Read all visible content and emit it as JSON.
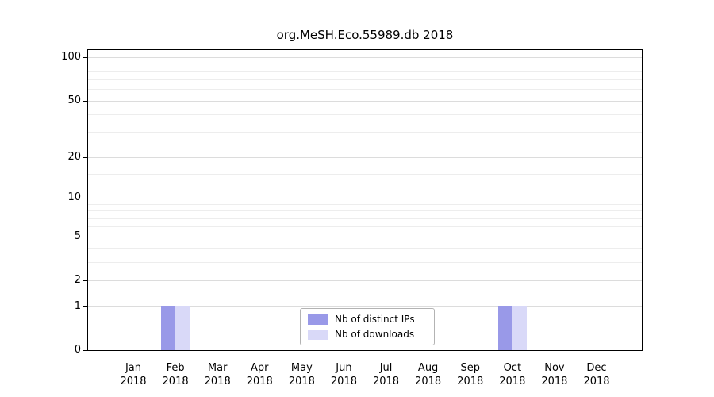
{
  "chart_data": {
    "type": "bar",
    "title": "org.MeSH.Eco.55989.db 2018",
    "categories": [
      "Jan 2018",
      "Feb 2018",
      "Mar 2018",
      "Apr 2018",
      "May 2018",
      "Jun 2018",
      "Jul 2018",
      "Aug 2018",
      "Sep 2018",
      "Oct 2018",
      "Nov 2018",
      "Dec 2018"
    ],
    "x_tick_line1": [
      "Jan",
      "Feb",
      "Mar",
      "Apr",
      "May",
      "Jun",
      "Jul",
      "Aug",
      "Sep",
      "Oct",
      "Nov",
      "Dec"
    ],
    "x_tick_line2": [
      "2018",
      "2018",
      "2018",
      "2018",
      "2018",
      "2018",
      "2018",
      "2018",
      "2018",
      "2018",
      "2018",
      "2018"
    ],
    "series": [
      {
        "name": "Nb of distinct IPs",
        "color": "#9999e8",
        "values": [
          0,
          1,
          0,
          0,
          0,
          0,
          0,
          0,
          0,
          1,
          0,
          0
        ]
      },
      {
        "name": "Nb of downloads",
        "color": "#d9d9f8",
        "values": [
          0,
          1,
          0,
          0,
          0,
          0,
          0,
          0,
          0,
          1,
          0,
          0
        ]
      }
    ],
    "y_ticks": [
      0,
      1,
      2,
      5,
      10,
      20,
      50,
      100
    ],
    "y_minor_ticks": [
      3,
      4,
      6,
      7,
      8,
      9,
      15,
      30,
      40,
      60,
      70,
      80,
      90
    ],
    "y_scale": "log1p",
    "ylim": [
      0,
      100
    ],
    "grid": true,
    "legend_position": "bottom-center",
    "colors": {
      "axis": "#000000",
      "grid_major": "#dcdcdc",
      "grid_minor": "#ededed",
      "background": "#ffffff"
    }
  }
}
